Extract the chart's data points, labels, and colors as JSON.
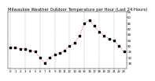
{
  "title": "Milwaukee Weather Outdoor Temperature per Hour (Last 24 Hours)",
  "hours": [
    0,
    1,
    2,
    3,
    4,
    5,
    6,
    7,
    8,
    9,
    10,
    11,
    12,
    13,
    14,
    15,
    16,
    17,
    18,
    19,
    20,
    21,
    22,
    23
  ],
  "temps": [
    29,
    29,
    28,
    28,
    27,
    26,
    22,
    18,
    22,
    24,
    25,
    27,
    30,
    32,
    37,
    46,
    48,
    44,
    40,
    37,
    35,
    34,
    30,
    26
  ],
  "ylim": [
    14,
    54
  ],
  "ytick_values": [
    18,
    22,
    26,
    30,
    34,
    38,
    42,
    46,
    50,
    54
  ],
  "xtick_values": [
    0,
    1,
    2,
    3,
    4,
    5,
    6,
    7,
    8,
    9,
    10,
    11,
    12,
    13,
    14,
    15,
    16,
    17,
    18,
    19,
    20,
    21,
    22,
    23
  ],
  "line_color": "#cc0000",
  "marker_color": "#000000",
  "bg_color": "#ffffff",
  "grid_color": "#888888",
  "title_fontsize": 3.8,
  "tick_fontsize": 2.8,
  "marker_size": 1.2,
  "line_width": 0.5,
  "grid_positions": [
    0,
    3,
    6,
    9,
    12,
    15,
    18,
    21
  ]
}
